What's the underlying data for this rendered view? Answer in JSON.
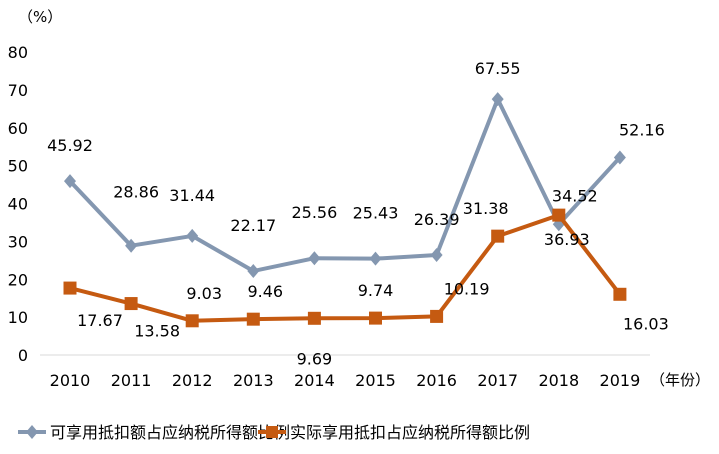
{
  "chart_data": {
    "type": "line",
    "title": "",
    "ylabel": "（%）",
    "xlabel": "（年份）",
    "ylim": [
      0,
      80
    ],
    "yticks": [
      "0",
      "10",
      "20",
      "30",
      "40",
      "50",
      "60",
      "70",
      "80"
    ],
    "categories": [
      "2010",
      "2011",
      "2012",
      "2013",
      "2014",
      "2015",
      "2016",
      "2017",
      "2018",
      "2019"
    ],
    "grid": false,
    "legend_position": "bottom",
    "series": [
      {
        "name": "可享用抵扣额占应纳税所得额比例",
        "color": "#8497b0",
        "marker": "diamond",
        "values": [
          45.92,
          28.86,
          31.44,
          22.17,
          25.56,
          25.43,
          26.39,
          67.55,
          34.52,
          52.16
        ],
        "labels": [
          "45.92",
          "28.86",
          "31.44",
          "22.17",
          "25.56",
          "25.43",
          "26.39",
          "67.55",
          "34.52",
          "52.16"
        ]
      },
      {
        "name": "实际享用抵扣占应纳税所得额比例",
        "color": "#c55a11",
        "marker": "square",
        "values": [
          17.67,
          13.58,
          9.03,
          9.46,
          9.69,
          9.74,
          10.19,
          31.38,
          36.93,
          16.03
        ],
        "labels": [
          "17.67",
          "13.58",
          "9.03",
          "9.46",
          "9.69",
          "9.74",
          "10.19",
          "31.38",
          "36.93",
          "16.03"
        ]
      }
    ]
  }
}
